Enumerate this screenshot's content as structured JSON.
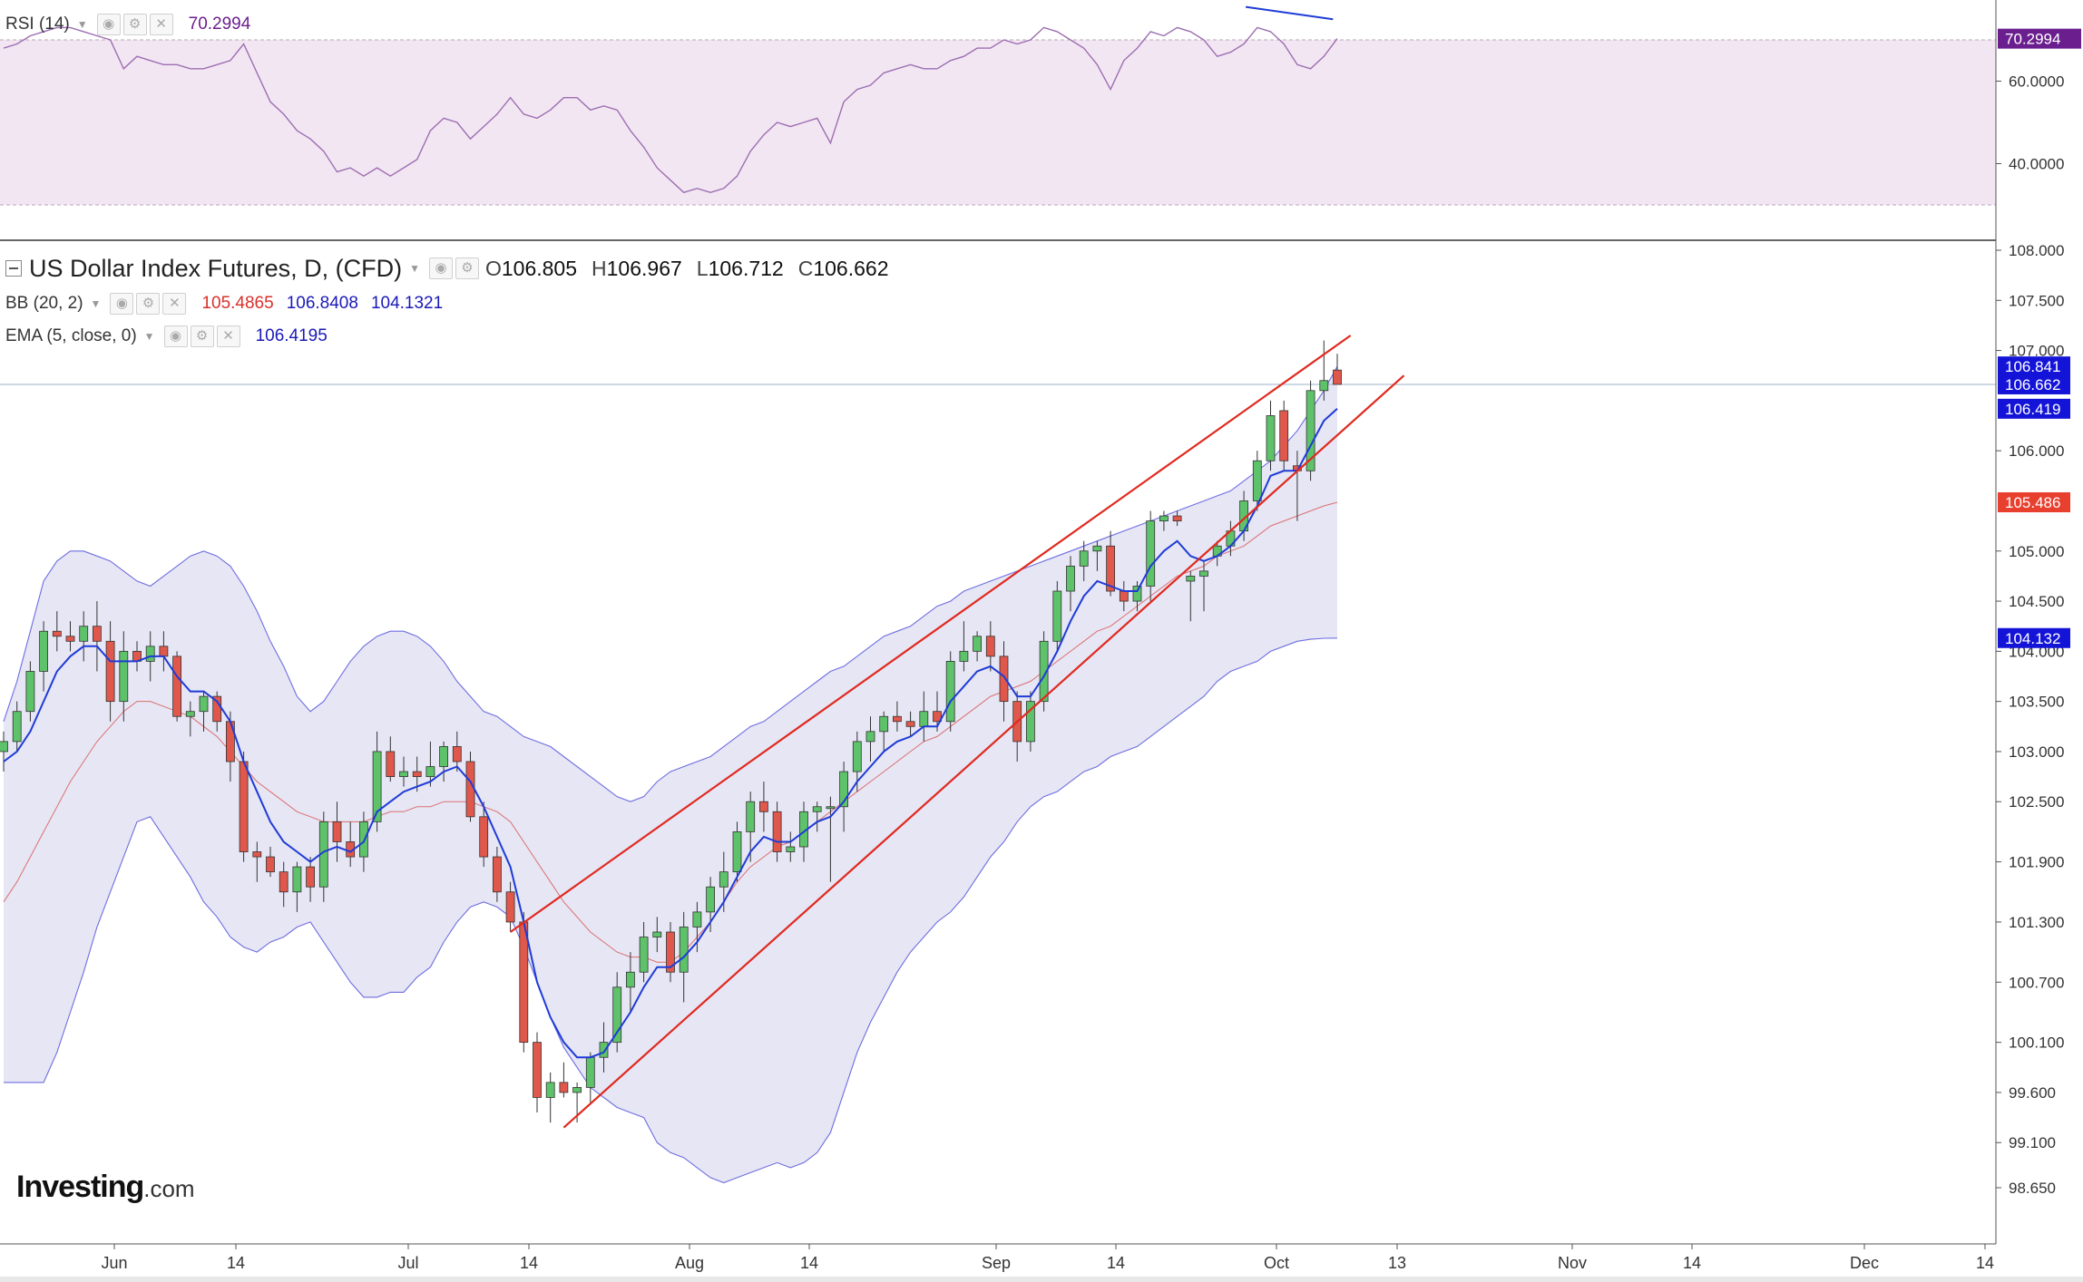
{
  "rsi": {
    "name": "RSI (14)",
    "value": "70.2994",
    "badge": "70.2994",
    "axis_labels": [
      "60.0000",
      "40.0000"
    ],
    "upper_band": 70,
    "lower_band": 30,
    "color": "#9c6fb1"
  },
  "symbol": {
    "title": "US Dollar Index Futures, D, (CFD)",
    "open_label": "O",
    "open": "106.805",
    "high_label": "H",
    "high": "106.967",
    "low_label": "L",
    "low": "106.712",
    "close_label": "C",
    "close": "106.662"
  },
  "bb": {
    "name": "BB (20, 2)",
    "basis": "105.4865",
    "upper": "106.8408",
    "lower": "104.1321",
    "basis_color": "#d9534f",
    "band_color": "#2a2ad4"
  },
  "ema": {
    "name": "EMA (5, close, 0)",
    "value": "106.4195",
    "color": "#1f3bd6"
  },
  "price_axis": {
    "labels": [
      "108.000",
      "107.500",
      "107.000",
      "106.000",
      "105.000",
      "104.500",
      "104.000",
      "103.500",
      "103.000",
      "102.500",
      "101.900",
      "101.300",
      "100.700",
      "100.100",
      "99.600",
      "99.100",
      "98.650"
    ],
    "badges": [
      {
        "text": "106.841",
        "price": 106.841,
        "color": "#1414d8"
      },
      {
        "text": "106.662",
        "price": 106.662,
        "color": "#1414d8"
      },
      {
        "text": "106.419",
        "price": 106.419,
        "color": "#1414d8"
      },
      {
        "text": "105.486",
        "price": 105.486,
        "color": "#e8402f"
      },
      {
        "text": "104.132",
        "price": 104.132,
        "color": "#1414d8"
      }
    ]
  },
  "time_axis": {
    "labels": [
      "Jun",
      "14",
      "Jul",
      "14",
      "Aug",
      "14",
      "Sep",
      "14",
      "Oct",
      "13",
      "Nov",
      "14",
      "Dec",
      "14"
    ]
  },
  "logo": {
    "brand": "Investing",
    "suffix": ".com"
  },
  "chart_data": {
    "type": "candlestick",
    "title": "US Dollar Index Futures, D, (CFD)",
    "ylim": [
      98.4,
      108.1
    ],
    "candles": [
      {
        "o": 103.0,
        "h": 103.2,
        "l": 102.8,
        "c": 103.1
      },
      {
        "o": 103.1,
        "h": 103.5,
        "l": 103.0,
        "c": 103.4
      },
      {
        "o": 103.4,
        "h": 103.9,
        "l": 103.3,
        "c": 103.8
      },
      {
        "o": 103.8,
        "h": 104.3,
        "l": 103.6,
        "c": 104.2
      },
      {
        "o": 104.2,
        "h": 104.4,
        "l": 104.0,
        "c": 104.15
      },
      {
        "o": 104.15,
        "h": 104.3,
        "l": 104.0,
        "c": 104.1
      },
      {
        "o": 104.1,
        "h": 104.4,
        "l": 103.9,
        "c": 104.25
      },
      {
        "o": 104.25,
        "h": 104.5,
        "l": 103.8,
        "c": 104.1
      },
      {
        "o": 104.1,
        "h": 104.3,
        "l": 103.3,
        "c": 103.5
      },
      {
        "o": 103.5,
        "h": 104.2,
        "l": 103.3,
        "c": 104.0
      },
      {
        "o": 104.0,
        "h": 104.1,
        "l": 103.8,
        "c": 103.9
      },
      {
        "o": 103.9,
        "h": 104.2,
        "l": 103.7,
        "c": 104.05
      },
      {
        "o": 104.05,
        "h": 104.2,
        "l": 103.8,
        "c": 103.95
      },
      {
        "o": 103.95,
        "h": 104.0,
        "l": 103.3,
        "c": 103.35
      },
      {
        "o": 103.35,
        "h": 103.5,
        "l": 103.15,
        "c": 103.4
      },
      {
        "o": 103.4,
        "h": 103.6,
        "l": 103.2,
        "c": 103.55
      },
      {
        "o": 103.55,
        "h": 103.6,
        "l": 103.2,
        "c": 103.3
      },
      {
        "o": 103.3,
        "h": 103.4,
        "l": 102.7,
        "c": 102.9
      },
      {
        "o": 102.9,
        "h": 103.0,
        "l": 101.9,
        "c": 102.0
      },
      {
        "o": 102.0,
        "h": 102.1,
        "l": 101.7,
        "c": 101.95
      },
      {
        "o": 101.95,
        "h": 102.05,
        "l": 101.75,
        "c": 101.8
      },
      {
        "o": 101.8,
        "h": 101.9,
        "l": 101.45,
        "c": 101.6
      },
      {
        "o": 101.6,
        "h": 101.9,
        "l": 101.4,
        "c": 101.85
      },
      {
        "o": 101.85,
        "h": 101.95,
        "l": 101.5,
        "c": 101.65
      },
      {
        "o": 101.65,
        "h": 102.4,
        "l": 101.5,
        "c": 102.3
      },
      {
        "o": 102.3,
        "h": 102.5,
        "l": 101.9,
        "c": 102.1
      },
      {
        "o": 102.1,
        "h": 102.3,
        "l": 101.85,
        "c": 101.95
      },
      {
        "o": 101.95,
        "h": 102.4,
        "l": 101.8,
        "c": 102.3
      },
      {
        "o": 102.3,
        "h": 103.2,
        "l": 102.2,
        "c": 103.0
      },
      {
        "o": 103.0,
        "h": 103.15,
        "l": 102.7,
        "c": 102.75
      },
      {
        "o": 102.75,
        "h": 102.95,
        "l": 102.65,
        "c": 102.8
      },
      {
        "o": 102.8,
        "h": 102.95,
        "l": 102.6,
        "c": 102.75
      },
      {
        "o": 102.75,
        "h": 103.1,
        "l": 102.65,
        "c": 102.85
      },
      {
        "o": 102.85,
        "h": 103.1,
        "l": 102.7,
        "c": 103.05
      },
      {
        "o": 103.05,
        "h": 103.2,
        "l": 102.8,
        "c": 102.9
      },
      {
        "o": 102.9,
        "h": 103.0,
        "l": 102.3,
        "c": 102.35
      },
      {
        "o": 102.35,
        "h": 102.5,
        "l": 101.85,
        "c": 101.95
      },
      {
        "o": 101.95,
        "h": 102.05,
        "l": 101.5,
        "c": 101.6
      },
      {
        "o": 101.6,
        "h": 101.7,
        "l": 101.2,
        "c": 101.3
      },
      {
        "o": 101.3,
        "h": 101.4,
        "l": 100.0,
        "c": 100.1
      },
      {
        "o": 100.1,
        "h": 100.2,
        "l": 99.4,
        "c": 99.55
      },
      {
        "o": 99.55,
        "h": 99.8,
        "l": 99.3,
        "c": 99.7
      },
      {
        "o": 99.7,
        "h": 99.9,
        "l": 99.55,
        "c": 99.6
      },
      {
        "o": 99.6,
        "h": 99.7,
        "l": 99.3,
        "c": 99.65
      },
      {
        "o": 99.65,
        "h": 100.0,
        "l": 99.5,
        "c": 99.95
      },
      {
        "o": 99.95,
        "h": 100.3,
        "l": 99.8,
        "c": 100.1
      },
      {
        "o": 100.1,
        "h": 100.8,
        "l": 100.0,
        "c": 100.65
      },
      {
        "o": 100.65,
        "h": 101.0,
        "l": 100.4,
        "c": 100.8
      },
      {
        "o": 100.8,
        "h": 101.3,
        "l": 100.7,
        "c": 101.15
      },
      {
        "o": 101.15,
        "h": 101.35,
        "l": 101.0,
        "c": 101.2
      },
      {
        "o": 101.2,
        "h": 101.3,
        "l": 100.7,
        "c": 100.8
      },
      {
        "o": 100.8,
        "h": 101.4,
        "l": 100.5,
        "c": 101.25
      },
      {
        "o": 101.25,
        "h": 101.5,
        "l": 101.0,
        "c": 101.4
      },
      {
        "o": 101.4,
        "h": 101.75,
        "l": 101.2,
        "c": 101.65
      },
      {
        "o": 101.65,
        "h": 102.0,
        "l": 101.4,
        "c": 101.8
      },
      {
        "o": 101.8,
        "h": 102.3,
        "l": 101.7,
        "c": 102.2
      },
      {
        "o": 102.2,
        "h": 102.6,
        "l": 101.9,
        "c": 102.5
      },
      {
        "o": 102.5,
        "h": 102.7,
        "l": 102.2,
        "c": 102.4
      },
      {
        "o": 102.4,
        "h": 102.5,
        "l": 101.9,
        "c": 102.0
      },
      {
        "o": 102.0,
        "h": 102.2,
        "l": 101.9,
        "c": 102.05
      },
      {
        "o": 102.05,
        "h": 102.5,
        "l": 101.9,
        "c": 102.4
      },
      {
        "o": 102.4,
        "h": 102.5,
        "l": 102.2,
        "c": 102.45
      },
      {
        "o": 102.45,
        "h": 102.55,
        "l": 101.7,
        "c": 102.45
      },
      {
        "o": 102.45,
        "h": 102.9,
        "l": 102.2,
        "c": 102.8
      },
      {
        "o": 102.8,
        "h": 103.2,
        "l": 102.6,
        "c": 103.1
      },
      {
        "o": 103.1,
        "h": 103.35,
        "l": 102.9,
        "c": 103.2
      },
      {
        "o": 103.2,
        "h": 103.4,
        "l": 103.0,
        "c": 103.35
      },
      {
        "o": 103.35,
        "h": 103.5,
        "l": 103.2,
        "c": 103.3
      },
      {
        "o": 103.3,
        "h": 103.4,
        "l": 103.15,
        "c": 103.25
      },
      {
        "o": 103.25,
        "h": 103.6,
        "l": 103.1,
        "c": 103.4
      },
      {
        "o": 103.4,
        "h": 103.6,
        "l": 103.2,
        "c": 103.3
      },
      {
        "o": 103.3,
        "h": 104.0,
        "l": 103.2,
        "c": 103.9
      },
      {
        "o": 103.9,
        "h": 104.3,
        "l": 103.8,
        "c": 104.0
      },
      {
        "o": 104.0,
        "h": 104.2,
        "l": 103.9,
        "c": 104.15
      },
      {
        "o": 104.15,
        "h": 104.3,
        "l": 103.8,
        "c": 103.95
      },
      {
        "o": 103.95,
        "h": 104.1,
        "l": 103.3,
        "c": 103.5
      },
      {
        "o": 103.5,
        "h": 103.6,
        "l": 102.9,
        "c": 103.1
      },
      {
        "o": 103.1,
        "h": 103.6,
        "l": 103.0,
        "c": 103.5
      },
      {
        "o": 103.5,
        "h": 104.2,
        "l": 103.4,
        "c": 104.1
      },
      {
        "o": 104.1,
        "h": 104.7,
        "l": 104.0,
        "c": 104.6
      },
      {
        "o": 104.6,
        "h": 104.95,
        "l": 104.4,
        "c": 104.85
      },
      {
        "o": 104.85,
        "h": 105.1,
        "l": 104.7,
        "c": 105.0
      },
      {
        "o": 105.0,
        "h": 105.1,
        "l": 104.8,
        "c": 105.05
      },
      {
        "o": 105.05,
        "h": 105.2,
        "l": 104.55,
        "c": 104.6
      },
      {
        "o": 104.6,
        "h": 104.7,
        "l": 104.4,
        "c": 104.5
      },
      {
        "o": 104.5,
        "h": 104.7,
        "l": 104.4,
        "c": 104.65
      },
      {
        "o": 104.65,
        "h": 105.4,
        "l": 104.5,
        "c": 105.3
      },
      {
        "o": 105.3,
        "h": 105.4,
        "l": 105.2,
        "c": 105.35
      },
      {
        "o": 105.35,
        "h": 105.4,
        "l": 105.25,
        "c": 105.3
      },
      {
        "o": 104.7,
        "h": 104.8,
        "l": 104.3,
        "c": 104.75
      },
      {
        "o": 104.75,
        "h": 104.9,
        "l": 104.4,
        "c": 104.8
      },
      {
        "o": 104.95,
        "h": 105.1,
        "l": 104.85,
        "c": 105.05
      },
      {
        "o": 105.05,
        "h": 105.3,
        "l": 104.95,
        "c": 105.2
      },
      {
        "o": 105.2,
        "h": 105.6,
        "l": 105.1,
        "c": 105.5
      },
      {
        "o": 105.5,
        "h": 106.0,
        "l": 105.4,
        "c": 105.9
      },
      {
        "o": 105.9,
        "h": 106.5,
        "l": 105.8,
        "c": 106.35
      },
      {
        "o": 106.4,
        "h": 106.5,
        "l": 105.8,
        "c": 105.9
      },
      {
        "o": 105.85,
        "h": 106.0,
        "l": 105.3,
        "c": 105.8
      },
      {
        "o": 105.8,
        "h": 106.7,
        "l": 105.7,
        "c": 106.6
      },
      {
        "o": 106.6,
        "h": 107.1,
        "l": 106.5,
        "c": 106.7
      },
      {
        "o": 106.805,
        "h": 106.967,
        "l": 106.712,
        "c": 106.662
      }
    ],
    "ema": [
      102.9,
      103.0,
      103.2,
      103.5,
      103.8,
      103.95,
      104.05,
      104.05,
      103.9,
      103.9,
      103.9,
      103.95,
      103.95,
      103.75,
      103.6,
      103.6,
      103.5,
      103.3,
      102.9,
      102.6,
      102.3,
      102.1,
      102.0,
      101.9,
      102.0,
      102.05,
      102.0,
      102.1,
      102.4,
      102.5,
      102.6,
      102.65,
      102.7,
      102.8,
      102.85,
      102.7,
      102.45,
      102.15,
      101.85,
      101.3,
      100.7,
      100.35,
      100.1,
      99.95,
      99.95,
      100.0,
      100.2,
      100.4,
      100.65,
      100.85,
      100.85,
      100.95,
      101.1,
      101.3,
      101.5,
      101.75,
      102.0,
      102.15,
      102.1,
      102.1,
      102.2,
      102.3,
      102.35,
      102.5,
      102.7,
      102.85,
      103.0,
      103.1,
      103.15,
      103.25,
      103.25,
      103.5,
      103.65,
      103.8,
      103.85,
      103.75,
      103.55,
      103.55,
      103.75,
      104.0,
      104.3,
      104.55,
      104.7,
      104.65,
      104.6,
      104.6,
      104.85,
      105.0,
      105.1,
      104.95,
      104.9,
      104.95,
      105.05,
      105.2,
      105.45,
      105.75,
      105.8,
      105.8,
      106.05,
      106.3,
      106.42
    ],
    "bb_basis": [
      101.5,
      101.7,
      101.95,
      102.2,
      102.45,
      102.7,
      102.9,
      103.1,
      103.25,
      103.4,
      103.5,
      103.5,
      103.45,
      103.4,
      103.35,
      103.25,
      103.15,
      103.0,
      102.85,
      102.7,
      102.6,
      102.5,
      102.4,
      102.35,
      102.3,
      102.3,
      102.3,
      102.3,
      102.35,
      102.4,
      102.4,
      102.45,
      102.45,
      102.5,
      102.5,
      102.5,
      102.45,
      102.4,
      102.3,
      102.1,
      101.9,
      101.7,
      101.5,
      101.35,
      101.2,
      101.1,
      101.0,
      100.95,
      100.95,
      100.9,
      100.9,
      101.0,
      101.15,
      101.3,
      101.5,
      101.7,
      101.85,
      101.95,
      102.05,
      102.1,
      102.2,
      102.3,
      102.4,
      102.5,
      102.6,
      102.7,
      102.8,
      102.9,
      103.0,
      103.1,
      103.15,
      103.25,
      103.35,
      103.45,
      103.55,
      103.6,
      103.65,
      103.7,
      103.8,
      103.9,
      104.0,
      104.1,
      104.2,
      104.25,
      104.35,
      104.45,
      104.55,
      104.65,
      104.75,
      104.8,
      104.85,
      104.95,
      105.0,
      105.05,
      105.15,
      105.25,
      105.3,
      105.35,
      105.4,
      105.45,
      105.486
    ],
    "bb_upper": [
      103.3,
      103.7,
      104.2,
      104.7,
      104.9,
      105.0,
      105.0,
      104.95,
      104.9,
      104.8,
      104.7,
      104.65,
      104.75,
      104.85,
      104.95,
      105.0,
      104.95,
      104.85,
      104.65,
      104.4,
      104.1,
      103.85,
      103.55,
      103.4,
      103.5,
      103.7,
      103.9,
      104.05,
      104.15,
      104.2,
      104.2,
      104.15,
      104.05,
      103.9,
      103.7,
      103.55,
      103.4,
      103.35,
      103.25,
      103.15,
      103.1,
      103.05,
      102.95,
      102.85,
      102.75,
      102.65,
      102.55,
      102.5,
      102.55,
      102.7,
      102.8,
      102.85,
      102.9,
      102.95,
      103.05,
      103.15,
      103.25,
      103.3,
      103.4,
      103.5,
      103.6,
      103.7,
      103.8,
      103.85,
      103.95,
      104.05,
      104.15,
      104.2,
      104.25,
      104.35,
      104.45,
      104.5,
      104.6,
      104.65,
      104.7,
      104.75,
      104.8,
      104.85,
      104.9,
      104.95,
      105.0,
      105.05,
      105.1,
      105.15,
      105.2,
      105.25,
      105.3,
      105.35,
      105.4,
      105.45,
      105.5,
      105.55,
      105.6,
      105.7,
      105.8,
      105.9,
      106.05,
      106.2,
      106.4,
      106.6,
      106.841
    ],
    "bb_lower": [
      99.7,
      99.7,
      99.7,
      99.7,
      100.0,
      100.4,
      100.8,
      101.25,
      101.6,
      101.95,
      102.3,
      102.35,
      102.15,
      101.95,
      101.75,
      101.5,
      101.35,
      101.15,
      101.05,
      101.0,
      101.1,
      101.15,
      101.25,
      101.3,
      101.1,
      100.9,
      100.7,
      100.55,
      100.55,
      100.6,
      100.6,
      100.75,
      100.85,
      101.1,
      101.3,
      101.45,
      101.5,
      101.45,
      101.35,
      101.05,
      100.7,
      100.35,
      100.05,
      99.85,
      99.65,
      99.55,
      99.45,
      99.4,
      99.35,
      99.1,
      99.0,
      98.95,
      98.85,
      98.75,
      98.7,
      98.75,
      98.8,
      98.85,
      98.9,
      98.85,
      98.9,
      99.0,
      99.2,
      99.6,
      100.0,
      100.3,
      100.55,
      100.8,
      101.0,
      101.15,
      101.3,
      101.4,
      101.55,
      101.75,
      101.95,
      102.1,
      102.3,
      102.45,
      102.55,
      102.6,
      102.7,
      102.8,
      102.85,
      102.95,
      103.0,
      103.05,
      103.15,
      103.25,
      103.35,
      103.45,
      103.55,
      103.7,
      103.8,
      103.85,
      103.9,
      104.0,
      104.05,
      104.1,
      104.12,
      104.13,
      104.132
    ],
    "rsi_values": [
      68,
      69,
      71,
      72,
      73,
      73,
      72,
      71,
      70,
      63,
      66,
      65,
      64,
      64,
      63,
      63,
      64,
      65,
      69,
      62,
      55,
      52,
      48,
      46,
      43,
      38,
      39,
      37,
      39,
      37,
      39,
      41,
      48,
      51,
      50,
      46,
      49,
      52,
      56,
      52,
      51,
      53,
      56,
      56,
      53,
      54,
      53,
      48,
      44,
      39,
      36,
      33,
      34,
      33,
      34,
      37,
      43,
      47,
      50,
      49,
      50,
      51,
      45,
      55,
      58,
      59,
      62,
      63,
      64,
      63,
      63,
      65,
      66,
      68,
      68,
      70,
      69,
      70,
      73,
      72,
      70,
      68,
      64,
      58,
      65,
      68,
      72,
      71,
      73,
      72,
      70,
      66,
      67,
      69,
      73,
      72,
      69,
      64,
      63,
      66,
      70.2994
    ],
    "trendlines": [
      {
        "color": "#e02a1f",
        "from": {
          "bar": 38,
          "price": 101.2
        },
        "to": {
          "bar": 101,
          "price": 107.15
        }
      },
      {
        "color": "#e02a1f",
        "from": {
          "bar": 42,
          "price": 99.25
        },
        "to": {
          "bar": 105,
          "price": 106.75
        }
      }
    ],
    "rsi_divergence_line": {
      "color": "#1f3bd6",
      "from": {
        "bar": 93,
        "rsi": 78
      },
      "to": {
        "bar": 99,
        "rsi": 75
      }
    },
    "grid": false,
    "legend": "top-left"
  }
}
